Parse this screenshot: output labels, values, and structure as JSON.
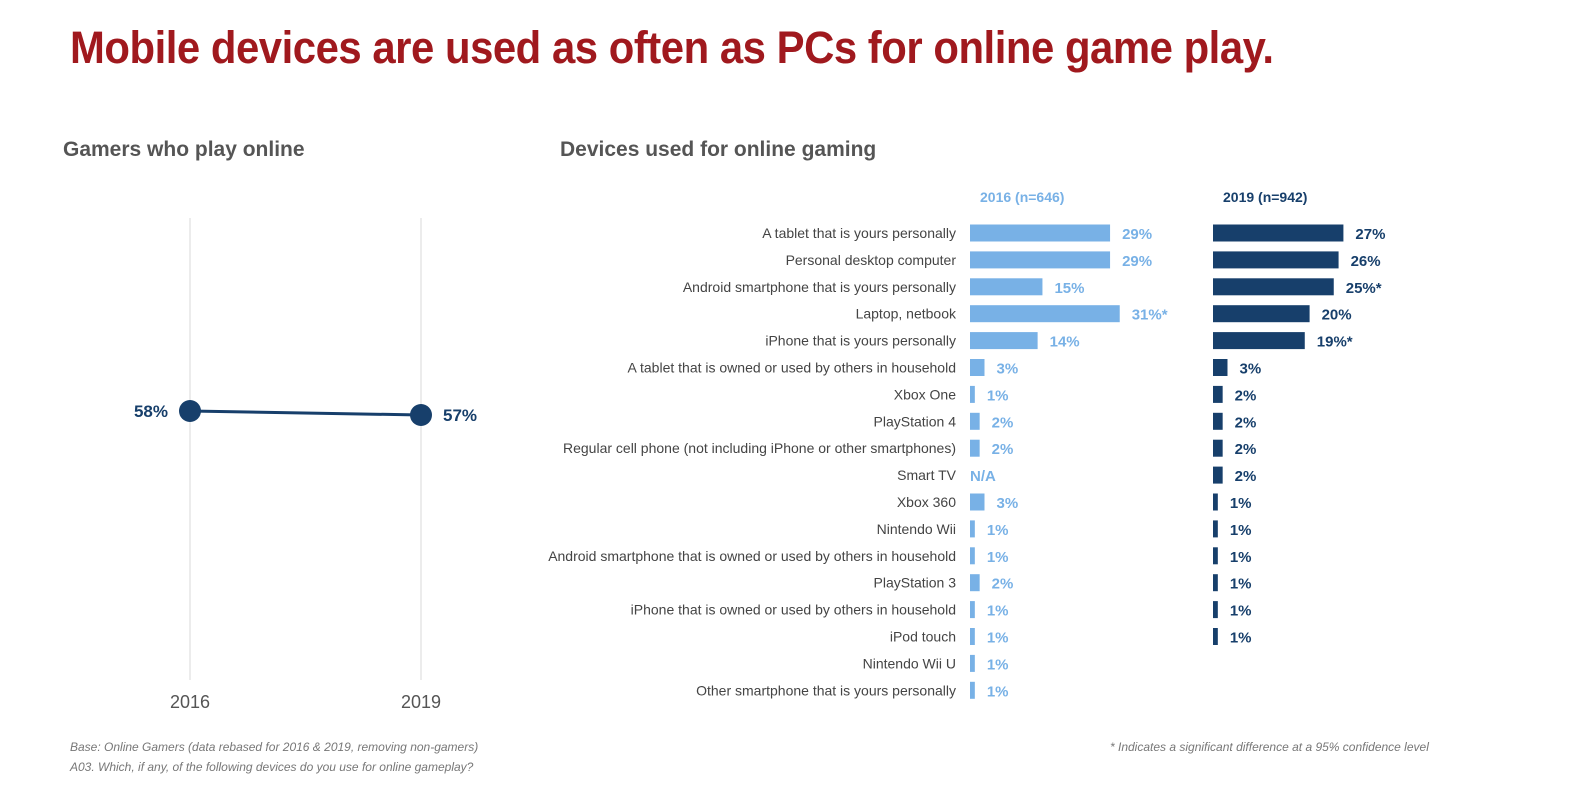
{
  "title": "Mobile devices are used as often as PCs for online game play.",
  "chart_data": [
    {
      "type": "line",
      "title": "Gamers who play online",
      "categories": [
        "2016",
        "2019"
      ],
      "values": [
        58,
        57
      ],
      "labels": [
        "58%",
        "57%"
      ],
      "color": "#173f6b",
      "grid": "vertical"
    },
    {
      "type": "bar",
      "orientation": "horizontal",
      "title": "Devices used for online gaming",
      "categories": [
        "A tablet that is yours personally",
        "Personal desktop computer",
        "Android smartphone that is yours personally",
        "Laptop, netbook",
        "iPhone that is yours personally",
        "A tablet that is owned or used by others in household",
        "Xbox One",
        "PlayStation 4",
        "Regular cell phone (not including iPhone or other smartphones)",
        "Smart TV",
        "Xbox 360",
        "Nintendo Wii",
        "Android smartphone that is owned or used by others in household",
        "PlayStation 3",
        "iPhone that is owned or used by others in household",
        "iPod touch",
        "Nintendo Wii U",
        "Other smartphone that is yours personally"
      ],
      "series": [
        {
          "name": "2016 (n=646)",
          "color": "#78b1e6",
          "values": [
            29,
            29,
            15,
            31,
            14,
            3,
            1,
            2,
            2,
            null,
            3,
            1,
            1,
            2,
            1,
            1,
            1,
            1
          ],
          "labels": [
            "29%",
            "29%",
            "15%",
            "31%*",
            "14%",
            "3%",
            "1%",
            "2%",
            "2%",
            "N/A",
            "3%",
            "1%",
            "1%",
            "2%",
            "1%",
            "1%",
            "1%",
            "1%"
          ]
        },
        {
          "name": "2019 (n=942)",
          "color": "#173f6b",
          "values": [
            27,
            26,
            25,
            20,
            19,
            3,
            2,
            2,
            2,
            2,
            1,
            1,
            1,
            1,
            1,
            1,
            null,
            null
          ],
          "labels": [
            "27%",
            "26%",
            "25%*",
            "20%",
            "19%*",
            "3%",
            "2%",
            "2%",
            "2%",
            "2%",
            "1%",
            "1%",
            "1%",
            "1%",
            "1%",
            "1%",
            "",
            ""
          ]
        }
      ]
    }
  ],
  "footer": {
    "base": "Base: Online Gamers (data rebased for 2016 & 2019, removing non-gamers)",
    "question": "A03. Which, if any, of the following devices do you use for online gameplay?",
    "note": "* Indicates a significant difference at a 95% confidence level"
  }
}
